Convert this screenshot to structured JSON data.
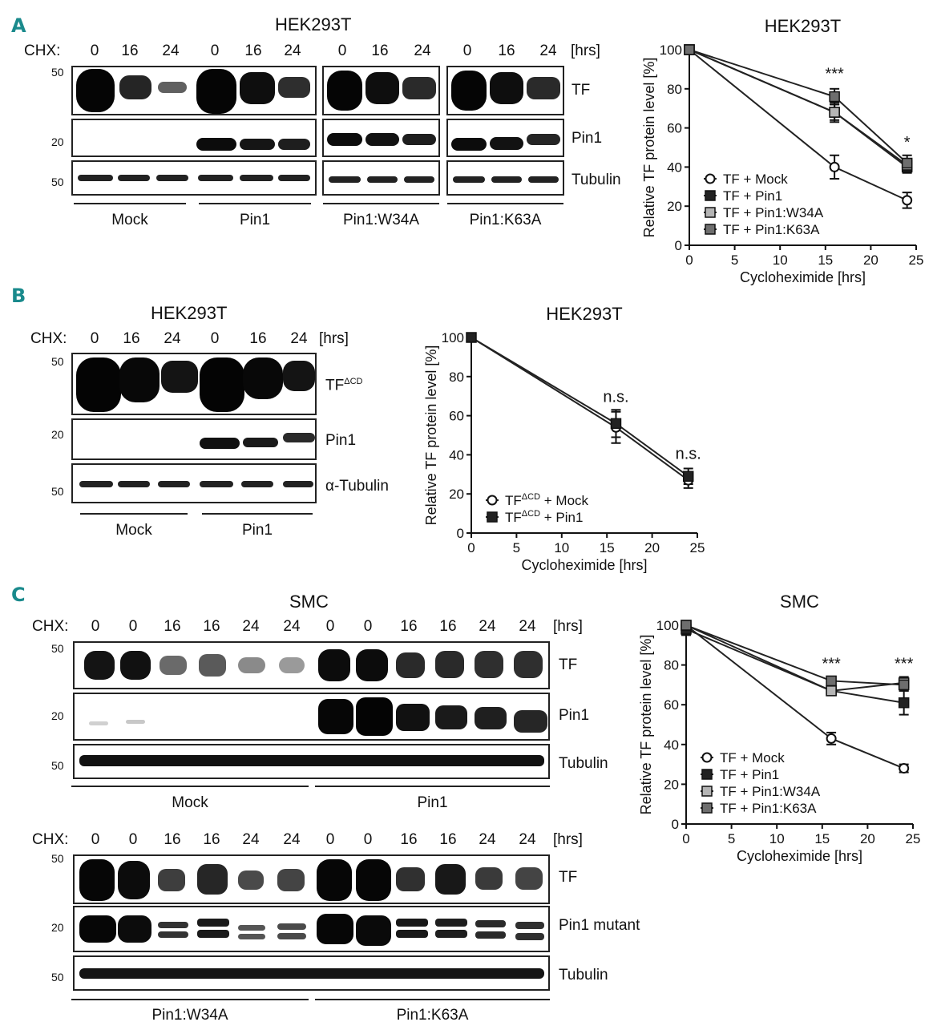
{
  "panels": {
    "A": {
      "letter": "A",
      "blot": {
        "title": "HEK293T",
        "chx_label": "CHX:",
        "hrs_label": "[hrs]",
        "times": [
          "0",
          "16",
          "24",
          "0",
          "16",
          "24",
          "0",
          "16",
          "24",
          "0",
          "16",
          "24"
        ],
        "bands": [
          {
            "label": "TF",
            "mw": "50"
          },
          {
            "label": "Pin1",
            "mw": "20"
          },
          {
            "label": "Tubulin",
            "mw": "50"
          }
        ],
        "groups": [
          "Mock",
          "Pin1",
          "Pin1:W34A",
          "Pin1:K63A"
        ]
      }
    },
    "B": {
      "letter": "B",
      "blot": {
        "title": "HEK293T",
        "chx_label": "CHX:",
        "hrs_label": "[hrs]",
        "times": [
          "0",
          "16",
          "24",
          "0",
          "16",
          "24"
        ],
        "bands": [
          {
            "label": "TF",
            "superscript": "ΔCD",
            "mw": "50"
          },
          {
            "label": "Pin1",
            "mw": "20"
          },
          {
            "label": "α-Tubulin",
            "mw": "50"
          }
        ],
        "groups": [
          "Mock",
          "Pin1"
        ]
      }
    },
    "C": {
      "letter": "C",
      "blot_top": {
        "title": "SMC",
        "chx_label": "CHX:",
        "hrs_label": "[hrs]",
        "times": [
          "0",
          "0",
          "16",
          "16",
          "24",
          "24",
          "0",
          "0",
          "16",
          "16",
          "24",
          "24"
        ],
        "bands": [
          {
            "label": "TF",
            "mw": "50"
          },
          {
            "label": "Pin1",
            "mw": "20"
          },
          {
            "label": "Tubulin",
            "mw": "50"
          }
        ],
        "groups": [
          "Mock",
          "Pin1"
        ]
      },
      "blot_bottom": {
        "chx_label": "CHX:",
        "hrs_label": "[hrs]",
        "times": [
          "0",
          "0",
          "16",
          "16",
          "24",
          "24",
          "0",
          "0",
          "16",
          "16",
          "24",
          "24"
        ],
        "bands": [
          {
            "label": "TF",
            "mw": "50"
          },
          {
            "label": "Pin1 mutant",
            "mw": "20"
          },
          {
            "label": "Tubulin",
            "mw": "50"
          }
        ],
        "groups": [
          "Pin1:W34A",
          "Pin1:K63A"
        ]
      }
    }
  },
  "chart_data": [
    {
      "type": "line",
      "panel": "A",
      "title": "HEK293T",
      "xlabel": "Cycloheximide [hrs]",
      "ylabel": "Relative TF protein level [%]",
      "xlim": [
        0,
        25
      ],
      "ylim": [
        0,
        100
      ],
      "xticks": [
        0,
        5,
        10,
        15,
        20,
        25
      ],
      "yticks": [
        0,
        20,
        40,
        60,
        80,
        100
      ],
      "x": [
        0,
        16,
        24
      ],
      "legend_position": "lower-left",
      "series": [
        {
          "name": "TF + Mock",
          "values": [
            100,
            40,
            23
          ],
          "errors": [
            0,
            6,
            4
          ],
          "marker": "open-circle",
          "color": "#ffffff"
        },
        {
          "name": "TF + Pin1",
          "values": [
            100,
            68,
            40
          ],
          "errors": [
            0,
            5,
            3
          ],
          "marker": "square",
          "color": "#222222"
        },
        {
          "name": "TF + Pin1:W34A",
          "values": [
            100,
            68,
            41
          ],
          "errors": [
            0,
            4,
            3
          ],
          "marker": "square",
          "color": "#b5b5b5"
        },
        {
          "name": "TF + Pin1:K63A",
          "values": [
            100,
            76,
            42
          ],
          "errors": [
            0,
            4,
            4
          ],
          "marker": "square",
          "color": "#6e6e6e"
        }
      ],
      "annotations": [
        {
          "x": 16,
          "y": 85,
          "text": "***"
        },
        {
          "x": 24,
          "y": 50,
          "text": "*"
        }
      ]
    },
    {
      "type": "line",
      "panel": "B",
      "title": "HEK293T",
      "xlabel": "Cycloheximide [hrs]",
      "ylabel": "Relative TF protein level [%]",
      "xlim": [
        0,
        25
      ],
      "ylim": [
        0,
        100
      ],
      "xticks": [
        0,
        5,
        10,
        15,
        20,
        25
      ],
      "yticks": [
        0,
        20,
        40,
        60,
        80,
        100
      ],
      "x": [
        0,
        16,
        24
      ],
      "legend_position": "lower-left",
      "series": [
        {
          "name": "TF + Mock",
          "name_super": "ΔCD",
          "values": [
            100,
            54,
            27
          ],
          "errors": [
            0,
            8,
            4
          ],
          "marker": "open-circle",
          "color": "#ffffff"
        },
        {
          "name": "TF + Pin1",
          "name_super": "ΔCD",
          "values": [
            100,
            56,
            29
          ],
          "errors": [
            0,
            7,
            4
          ],
          "marker": "square",
          "color": "#222222"
        }
      ],
      "annotations": [
        {
          "x": 16,
          "y": 67,
          "text": "n.s."
        },
        {
          "x": 24,
          "y": 38,
          "text": "n.s."
        }
      ]
    },
    {
      "type": "line",
      "panel": "C",
      "title": "SMC",
      "xlabel": "Cycloheximide [hrs]",
      "ylabel": "Relative TF protein level [%]",
      "xlim": [
        0,
        25
      ],
      "ylim": [
        0,
        100
      ],
      "xticks": [
        0,
        5,
        10,
        15,
        20,
        25
      ],
      "yticks": [
        0,
        20,
        40,
        60,
        80,
        100
      ],
      "x": [
        0,
        16,
        24
      ],
      "legend_position": "lower-left",
      "series": [
        {
          "name": "TF + Mock",
          "values": [
            100,
            43,
            28
          ],
          "errors": [
            0,
            3,
            2
          ],
          "marker": "open-circle",
          "color": "#ffffff"
        },
        {
          "name": "TF + Pin1",
          "values": [
            98,
            67,
            61
          ],
          "errors": [
            3,
            2,
            6
          ],
          "marker": "square",
          "color": "#222222"
        },
        {
          "name": "TF + Pin1:W34A",
          "values": [
            100,
            67,
            71
          ],
          "errors": [
            0,
            2,
            3
          ],
          "marker": "square",
          "color": "#b5b5b5"
        },
        {
          "name": "TF + Pin1:K63A",
          "values": [
            100,
            72,
            70
          ],
          "errors": [
            0,
            2,
            3
          ],
          "marker": "square",
          "color": "#6e6e6e"
        }
      ],
      "annotations": [
        {
          "x": 16,
          "y": 78,
          "text": "***"
        },
        {
          "x": 24,
          "y": 78,
          "text": "***"
        }
      ]
    }
  ]
}
